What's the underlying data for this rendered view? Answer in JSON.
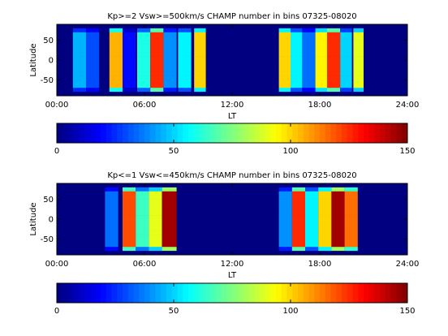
{
  "panels": [
    {
      "title": "Kp>=2 Vsw>=500km/s CHAMP number in bins 07325-08020",
      "xlabel": "LT",
      "ylabel": "Latitude",
      "xticks": [
        "00:00",
        "06:00",
        "12:00",
        "18:00",
        "24:00"
      ],
      "yticks": [
        "50",
        "0",
        "-50"
      ],
      "colorbar_ticks": [
        "0",
        "50",
        "100",
        "150"
      ]
    },
    {
      "title": "Kp<=1 Vsw<=450km/s CHAMP number in bins  07325-08020",
      "xlabel": "LT",
      "ylabel": "Latitude",
      "xticks": [
        "00:00",
        "06:00",
        "12:00",
        "18:00",
        "24:00"
      ],
      "yticks": [
        "50",
        "0",
        "-50"
      ],
      "colorbar_ticks": [
        "0",
        "50",
        "100",
        "150"
      ]
    }
  ],
  "chart_data": [
    {
      "type": "heatmap",
      "title": "Kp>=2 Vsw>=500km/s CHAMP number in bins 07325-08020",
      "xlabel": "LT",
      "ylabel": "Latitude",
      "x_range_hours": [
        0,
        24
      ],
      "y_range": [
        -90,
        90
      ],
      "x_tick_labels": [
        "00:00",
        "06:00",
        "12:00",
        "18:00",
        "24:00"
      ],
      "y_tick_labels": [
        "50",
        "0",
        "-50"
      ],
      "colormap": "jet",
      "clim": [
        0,
        150
      ],
      "background_value": 0,
      "bins_lt_start_end_value": [
        [
          1.1,
          2.0,
          45
        ],
        [
          2.0,
          2.9,
          30
        ],
        [
          3.6,
          4.5,
          105
        ],
        [
          4.5,
          5.4,
          20
        ],
        [
          5.5,
          6.4,
          60
        ],
        [
          6.4,
          7.3,
          125
        ],
        [
          7.3,
          8.2,
          40
        ],
        [
          8.3,
          9.2,
          55
        ],
        [
          9.4,
          10.2,
          100
        ],
        [
          15.2,
          16.0,
          100
        ],
        [
          16.0,
          16.8,
          55
        ],
        [
          16.8,
          17.7,
          35
        ],
        [
          17.7,
          18.5,
          95
        ],
        [
          18.5,
          19.4,
          125
        ],
        [
          19.4,
          20.2,
          50
        ],
        [
          20.3,
          21.0,
          90
        ]
      ]
    },
    {
      "type": "heatmap",
      "title": "Kp<=1 Vsw<=450km/s CHAMP number in bins  07325-08020",
      "xlabel": "LT",
      "ylabel": "Latitude",
      "x_range_hours": [
        0,
        24
      ],
      "y_range": [
        -90,
        90
      ],
      "x_tick_labels": [
        "00:00",
        "06:00",
        "12:00",
        "18:00",
        "24:00"
      ],
      "y_tick_labels": [
        "50",
        "0",
        "-50"
      ],
      "colormap": "jet",
      "clim": [
        0,
        150
      ],
      "background_value": 0,
      "bins_lt_start_end_value": [
        [
          3.3,
          4.2,
          35
        ],
        [
          4.5,
          5.4,
          120
        ],
        [
          5.4,
          6.3,
          65
        ],
        [
          6.3,
          7.2,
          90
        ],
        [
          7.2,
          8.2,
          145
        ],
        [
          15.2,
          16.1,
          40
        ],
        [
          16.1,
          17.0,
          125
        ],
        [
          17.0,
          17.9,
          55
        ],
        [
          17.9,
          18.8,
          100
        ],
        [
          18.8,
          19.7,
          145
        ],
        [
          19.7,
          20.6,
          115
        ]
      ]
    }
  ]
}
